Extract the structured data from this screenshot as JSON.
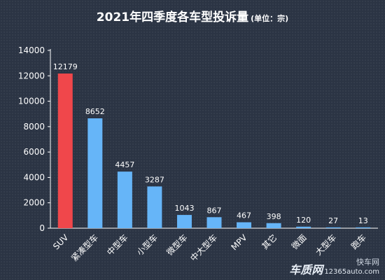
{
  "header": {
    "title": "2021年四季度各车型投诉量",
    "unit": "(单位：宗)"
  },
  "watermark": {
    "brand": "车质网",
    "url": "12365auto.com",
    "corner": "快车网"
  },
  "colors": {
    "highlight": "#f0474b",
    "bar": "#66b5f8",
    "text": "#ffffff",
    "axis": "#ffffff"
  },
  "chart_data": {
    "type": "bar",
    "title": "2021年四季度各车型投诉量",
    "xlabel": "",
    "ylabel": "",
    "ylim": [
      0,
      14000
    ],
    "yticks": [
      0,
      2000,
      4000,
      6000,
      8000,
      10000,
      12000,
      14000
    ],
    "categories": [
      "SUV",
      "紧凑型车",
      "中型车",
      "小型车",
      "微型车",
      "中大型车",
      "MPV",
      "其它",
      "微面",
      "大型车",
      "跑车"
    ],
    "values": [
      12179,
      8652,
      4457,
      3287,
      1043,
      867,
      467,
      398,
      120,
      27,
      13
    ],
    "highlight_index": 0,
    "grid": false,
    "legend": "none"
  }
}
